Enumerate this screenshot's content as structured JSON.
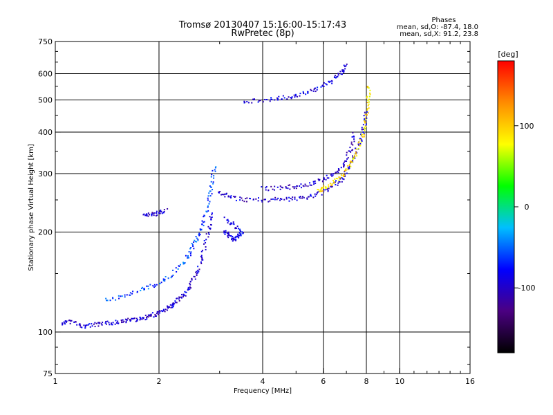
{
  "chart_data": {
    "type": "scatter",
    "title": "Tromsø 20130407 15:16:00-15:17:43",
    "subtitle": "RwPretec (8p)",
    "xlabel": "Frequency [MHz]",
    "ylabel": "Stationary phase Virtual Height [km]",
    "x_scale": "log",
    "y_scale": "log",
    "xlim": [
      1,
      16
    ],
    "ylim": [
      75,
      750
    ],
    "x_ticks": [
      1,
      2,
      4,
      6,
      8,
      10,
      16
    ],
    "x_tick_labels": [
      "1",
      "2",
      "4",
      "6",
      "8",
      "10",
      "16"
    ],
    "y_ticks": [
      75,
      100,
      200,
      300,
      400,
      500,
      600,
      750
    ],
    "y_tick_labels": [
      "75",
      "100",
      "200",
      "300",
      "400",
      "500",
      "600",
      "750"
    ],
    "grid": true,
    "stats": {
      "heading": "Phases",
      "o_line": "mean, sd,O: -87.4, 18.0",
      "x_line": "mean, sd,X:  91.2, 23.8"
    },
    "colorbar": {
      "label": "[deg]",
      "range": [
        -180,
        180
      ],
      "ticks": [
        100,
        0,
        -100
      ],
      "tick_labels": [
        "100",
        "0",
        "-100"
      ],
      "colors": [
        "#000000",
        "#4b0082",
        "#0000ff",
        "#00bfff",
        "#00ff00",
        "#ffff00",
        "#ff8c00",
        "#ff0000"
      ]
    },
    "traces": [
      {
        "name_hint": "",
        "phase": -95,
        "points": [
          [
            1.05,
            106
          ],
          [
            1.1,
            108
          ],
          [
            1.2,
            104
          ],
          [
            1.3,
            105
          ],
          [
            1.4,
            106
          ],
          [
            1.5,
            107
          ],
          [
            1.6,
            108
          ],
          [
            1.7,
            109
          ],
          [
            1.8,
            110
          ],
          [
            1.9,
            112
          ],
          [
            2.0,
            114
          ],
          [
            2.1,
            117
          ],
          [
            2.2,
            121
          ],
          [
            2.3,
            126
          ],
          [
            2.4,
            132
          ],
          [
            2.5,
            142
          ],
          [
            2.6,
            155
          ],
          [
            2.7,
            175
          ],
          [
            2.8,
            205
          ],
          [
            2.85,
            230
          ]
        ]
      },
      {
        "phase": -60,
        "points": [
          [
            1.4,
            125
          ],
          [
            1.6,
            128
          ],
          [
            1.8,
            135
          ],
          [
            2.0,
            140
          ],
          [
            2.2,
            150
          ],
          [
            2.4,
            165
          ],
          [
            2.5,
            180
          ],
          [
            2.6,
            195
          ],
          [
            2.7,
            215
          ],
          [
            2.8,
            250
          ],
          [
            2.85,
            280
          ],
          [
            2.9,
            320
          ]
        ]
      },
      {
        "phase": -95,
        "points": [
          [
            3.0,
            265
          ],
          [
            3.2,
            255
          ],
          [
            3.5,
            250
          ],
          [
            4.0,
            250
          ],
          [
            4.5,
            251
          ],
          [
            5.0,
            252
          ],
          [
            5.5,
            256
          ],
          [
            6.0,
            264
          ],
          [
            6.4,
            274
          ],
          [
            6.8,
            290
          ],
          [
            7.1,
            310
          ],
          [
            7.4,
            340
          ],
          [
            7.7,
            380
          ],
          [
            7.9,
            420
          ],
          [
            8.0,
            460
          ]
        ]
      },
      {
        "phase": 90,
        "points": [
          [
            5.8,
            265
          ],
          [
            6.0,
            270
          ],
          [
            6.4,
            280
          ],
          [
            6.8,
            295
          ],
          [
            7.2,
            318
          ],
          [
            7.5,
            345
          ],
          [
            7.8,
            390
          ],
          [
            8.0,
            440
          ],
          [
            8.1,
            500
          ],
          [
            8.15,
            560
          ]
        ]
      },
      {
        "phase": -100,
        "points": [
          [
            4.0,
            270
          ],
          [
            4.5,
            272
          ],
          [
            5.0,
            274
          ],
          [
            5.5,
            280
          ],
          [
            6.0,
            288
          ],
          [
            6.5,
            300
          ],
          [
            6.9,
            320
          ],
          [
            7.2,
            355
          ],
          [
            7.4,
            400
          ]
        ]
      },
      {
        "phase": -90,
        "points": [
          [
            3.5,
            495
          ],
          [
            4.0,
            500
          ],
          [
            4.5,
            505
          ],
          [
            5.0,
            515
          ],
          [
            5.5,
            530
          ],
          [
            6.0,
            550
          ],
          [
            6.5,
            580
          ],
          [
            6.8,
            610
          ],
          [
            7.0,
            640
          ]
        ]
      },
      {
        "phase": -90,
        "points": [
          [
            3.1,
            200
          ],
          [
            3.2,
            195
          ],
          [
            3.3,
            190
          ],
          [
            3.4,
            195
          ],
          [
            3.5,
            200
          ],
          [
            3.3,
            210
          ],
          [
            3.1,
            220
          ]
        ]
      },
      {
        "phase": -95,
        "points": [
          [
            1.8,
            225
          ],
          [
            1.9,
            226
          ],
          [
            2.0,
            228
          ],
          [
            2.1,
            232
          ]
        ]
      }
    ]
  }
}
